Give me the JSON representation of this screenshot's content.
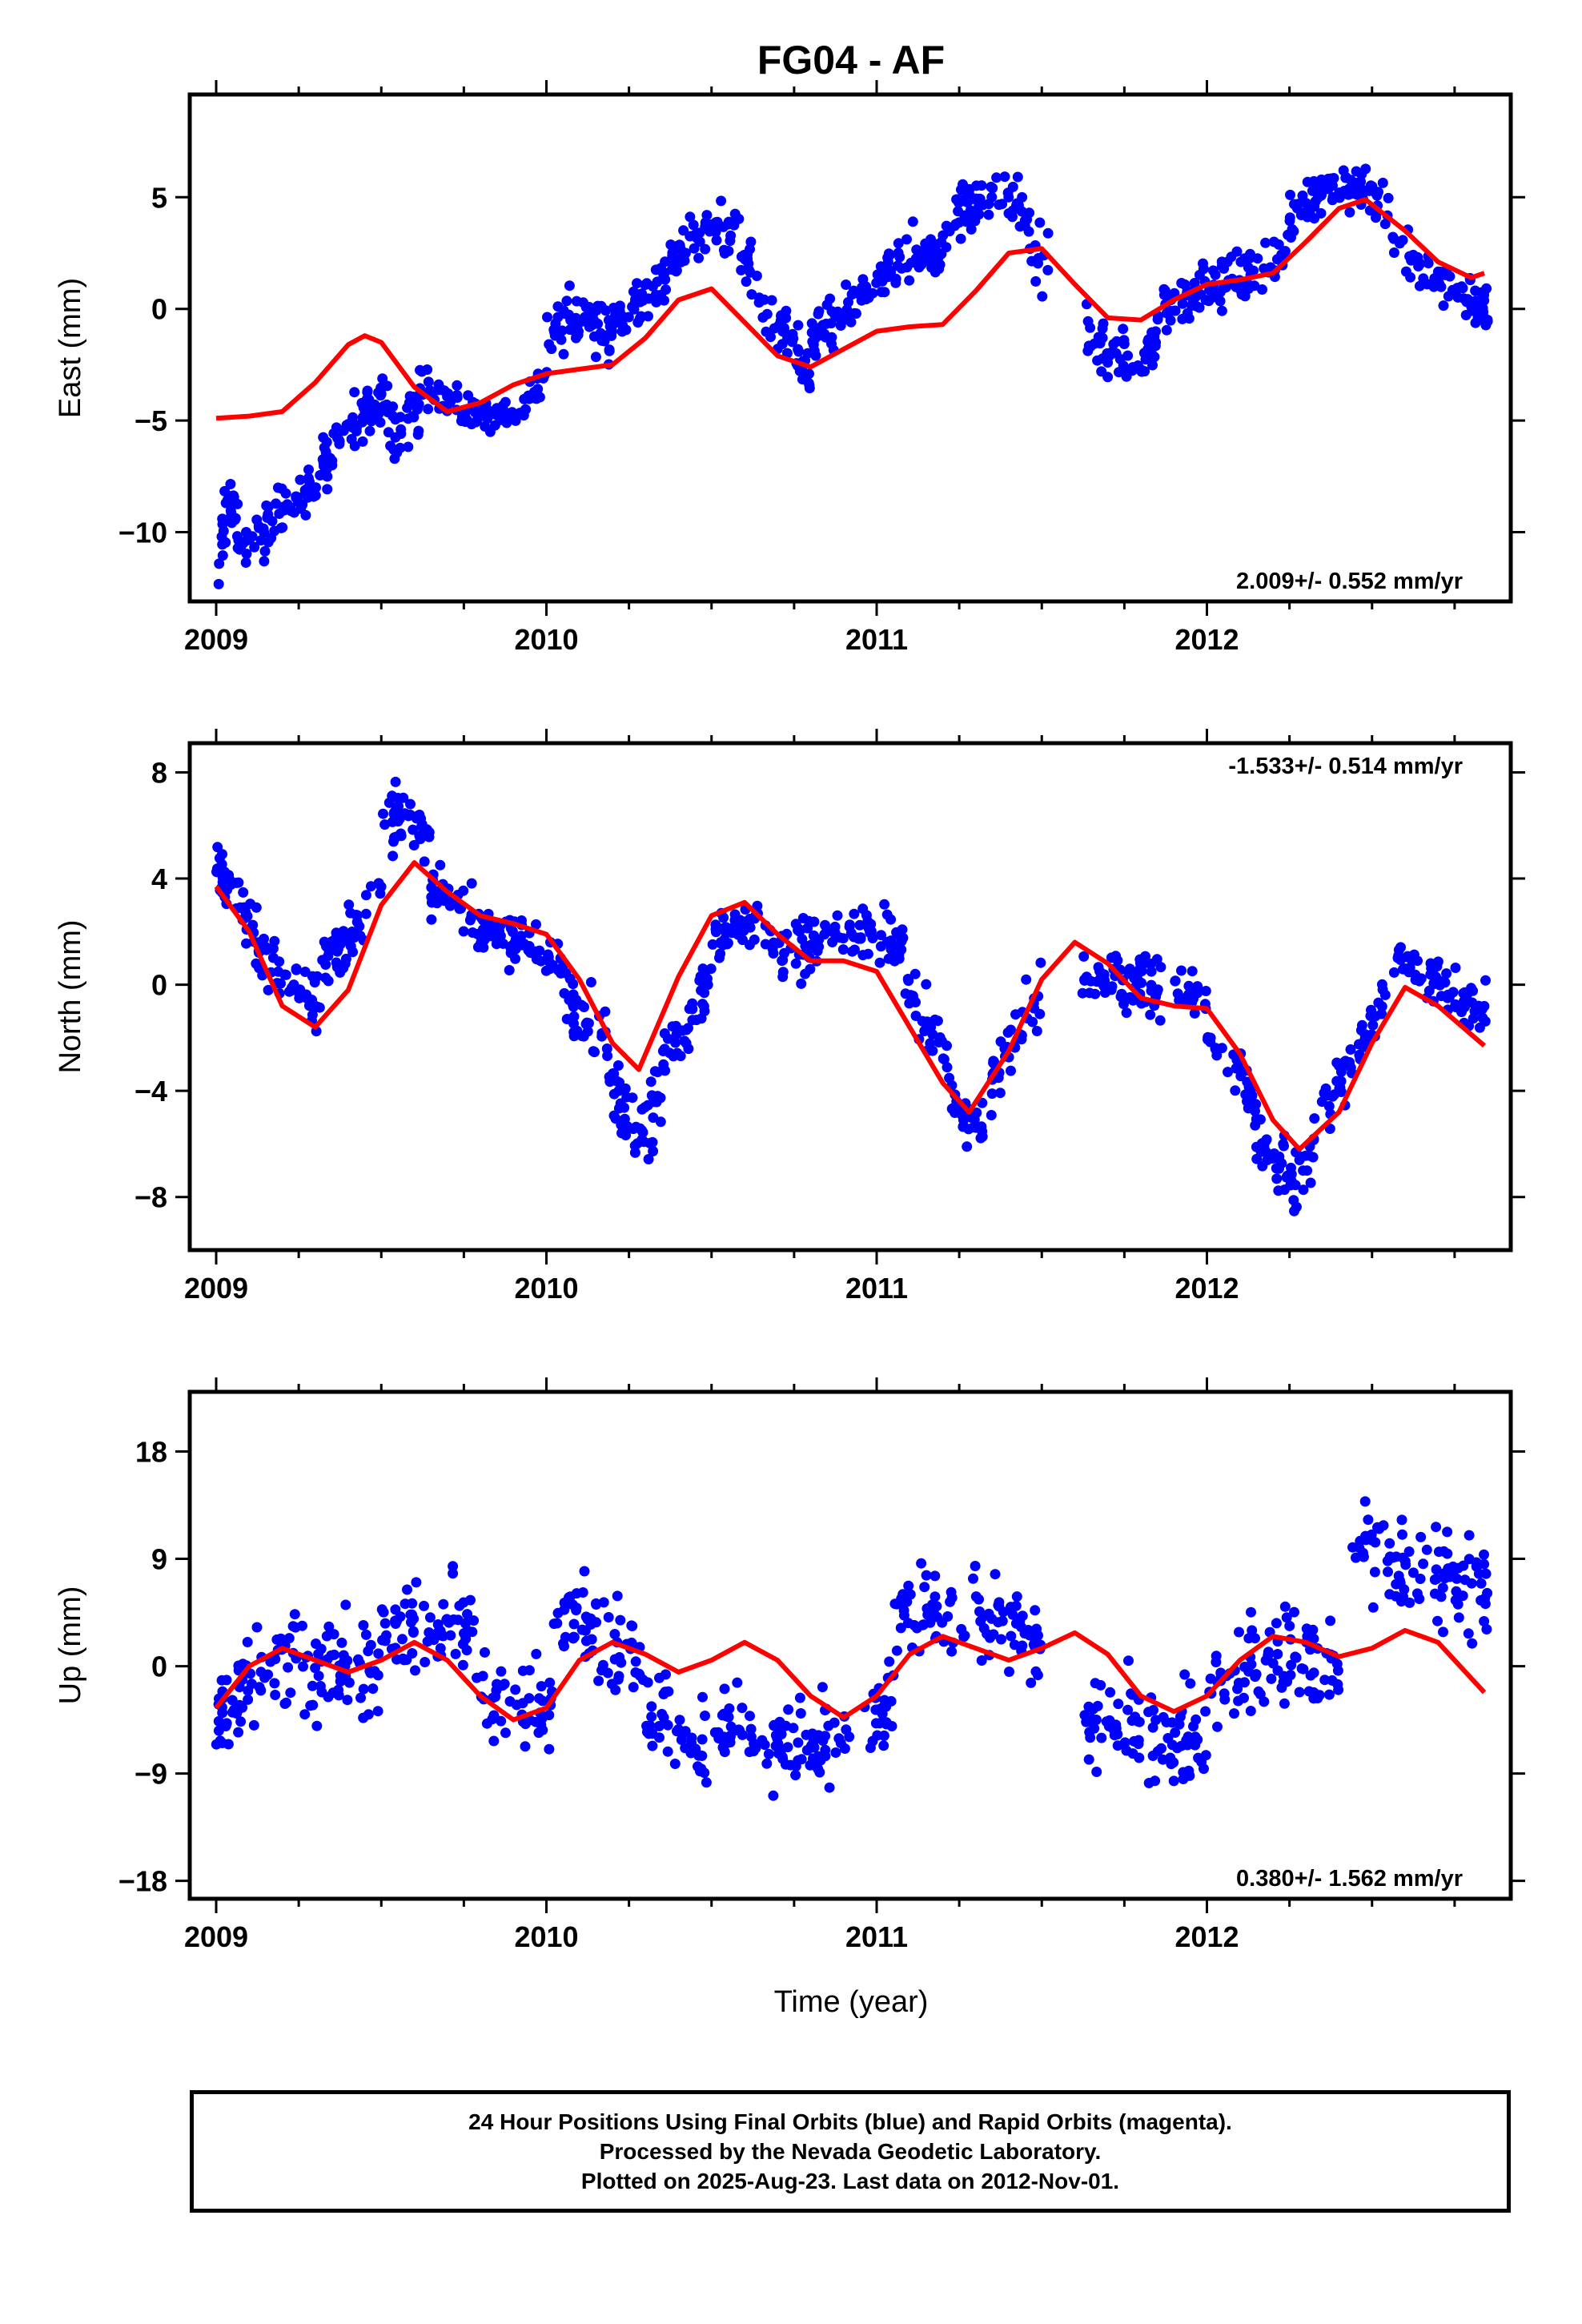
{
  "title": "FG04 - AF",
  "xlabel": "Time (year)",
  "footer": {
    "line1": "24 Hour Positions Using Final Orbits (blue) and Rapid Orbits (magenta).",
    "line2": "Processed by the Nevada Geodetic Laboratory.",
    "line3": "Plotted on 2025-Aug-23. Last data on 2012-Nov-01."
  },
  "colors": {
    "final_orbits": "#0000ff",
    "rapid_orbits": "#ff00ff",
    "model": "#ff0000",
    "frame": "#000000"
  },
  "chart_data": [
    {
      "type": "scatter",
      "component": "east",
      "ylabel": "East (mm)",
      "rate_label": "2.009+/- 0.552 mm/yr",
      "xlim": [
        2008.92,
        2012.92
      ],
      "ylim": [
        -13.1,
        9.6
      ],
      "xticks": [
        2009,
        2010,
        2011,
        2012
      ],
      "yticks": [
        -10,
        -5,
        0,
        5
      ],
      "fit_curve": {
        "x": [
          2009.0,
          2009.1,
          2009.2,
          2009.3,
          2009.4,
          2009.45,
          2009.5,
          2009.6,
          2009.7,
          2009.8,
          2009.9,
          2010.0,
          2010.1,
          2010.2,
          2010.3,
          2010.4,
          2010.5,
          2010.6,
          2010.7,
          2010.8,
          2010.9,
          2011.0,
          2011.1,
          2011.2,
          2011.3,
          2011.4,
          2011.5,
          2011.6,
          2011.7,
          2011.8,
          2011.9,
          2012.0,
          2012.1,
          2012.2,
          2012.3,
          2012.4,
          2012.48,
          2012.6,
          2012.7,
          2012.8,
          2012.84
        ],
        "y": [
          -4.9,
          -4.8,
          -4.6,
          -3.3,
          -1.6,
          -1.2,
          -1.5,
          -3.5,
          -4.6,
          -4.2,
          -3.4,
          -2.9,
          -2.7,
          -2.5,
          -1.3,
          0.4,
          0.9,
          -0.6,
          -2.1,
          -2.6,
          -1.8,
          -1.0,
          -0.8,
          -0.7,
          0.8,
          2.5,
          2.7,
          1.1,
          -0.4,
          -0.5,
          0.4,
          1.1,
          1.3,
          1.6,
          3.0,
          4.5,
          4.9,
          3.5,
          2.1,
          1.4,
          1.6
        ]
      },
      "clusters": [
        {
          "x0": 2009.0,
          "x1": 2009.08,
          "y0": -12.5,
          "y1": -11.0,
          "ymid": -9.0,
          "spread": 1.3,
          "n": 35
        },
        {
          "x0": 2009.08,
          "x1": 2009.33,
          "y0": -11.0,
          "y1": -7.0,
          "ymid": -9.0,
          "spread": 1.2,
          "n": 65
        },
        {
          "x0": 2009.33,
          "x1": 2009.52,
          "y0": -7.0,
          "y1": -4.0,
          "ymid": -5.0,
          "spread": 1.2,
          "n": 60
        },
        {
          "x0": 2009.52,
          "x1": 2009.62,
          "y0": -6.0,
          "y1": -4.0,
          "ymid": -5.0,
          "spread": 1.3,
          "n": 30
        },
        {
          "x0": 2009.62,
          "x1": 2010.0,
          "y0": -3.0,
          "y1": -3.0,
          "ymid": -4.8,
          "spread": 1.0,
          "n": 85
        },
        {
          "x0": 2010.0,
          "x1": 2010.2,
          "y0": -1.5,
          "y1": -1.0,
          "ymid": -0.5,
          "spread": 1.3,
          "n": 65
        },
        {
          "x0": 2010.2,
          "x1": 2010.45,
          "y0": -0.5,
          "y1": 3.5,
          "ymid": 1.0,
          "spread": 1.1,
          "n": 70
        },
        {
          "x0": 2010.45,
          "x1": 2010.62,
          "y0": 3.0,
          "y1": 2.0,
          "ymid": 3.5,
          "spread": 1.2,
          "n": 45
        },
        {
          "x0": 2010.62,
          "x1": 2010.8,
          "y0": 0.5,
          "y1": -3.0,
          "ymid": -1.0,
          "spread": 1.2,
          "n": 45
        },
        {
          "x0": 2010.8,
          "x1": 2011.05,
          "y0": -1.5,
          "y1": 2.0,
          "ymid": 0.0,
          "spread": 1.1,
          "n": 70
        },
        {
          "x0": 2011.05,
          "x1": 2011.2,
          "y0": 2.0,
          "y1": 2.5,
          "ymid": 2.5,
          "spread": 1.2,
          "n": 45
        },
        {
          "x0": 2011.2,
          "x1": 2011.45,
          "y0": 3.0,
          "y1": 4.5,
          "ymid": 5.0,
          "spread": 1.2,
          "n": 65
        },
        {
          "x0": 2011.45,
          "x1": 2011.52,
          "y0": 3.0,
          "y1": 2.0,
          "ymid": 2.5,
          "spread": 1.5,
          "n": 15
        },
        {
          "x0": 2011.63,
          "x1": 2011.85,
          "y0": -1.0,
          "y1": -1.5,
          "ymid": -2.2,
          "spread": 1.1,
          "n": 60
        },
        {
          "x0": 2011.85,
          "x1": 2012.25,
          "y0": 0.0,
          "y1": 2.5,
          "ymid": 1.2,
          "spread": 1.1,
          "n": 95
        },
        {
          "x0": 2012.25,
          "x1": 2012.55,
          "y0": 4.0,
          "y1": 4.5,
          "ymid": 5.5,
          "spread": 1.2,
          "n": 80
        },
        {
          "x0": 2012.55,
          "x1": 2012.85,
          "y0": 3.0,
          "y1": 0.0,
          "ymid": 1.5,
          "spread": 1.2,
          "n": 70
        }
      ]
    },
    {
      "type": "scatter",
      "component": "north",
      "ylabel": "North (mm)",
      "rate_label": "-1.533+/- 0.514 mm/yr",
      "xlim": [
        2008.92,
        2012.92
      ],
      "ylim": [
        -10.0,
        9.1
      ],
      "xticks": [
        2009,
        2010,
        2011,
        2012
      ],
      "yticks": [
        -8,
        -4,
        0,
        4,
        8
      ],
      "fit_curve": {
        "x": [
          2009.0,
          2009.1,
          2009.2,
          2009.3,
          2009.4,
          2009.5,
          2009.6,
          2009.7,
          2009.8,
          2009.9,
          2010.0,
          2010.1,
          2010.2,
          2010.28,
          2010.4,
          2010.5,
          2010.6,
          2010.7,
          2010.8,
          2010.9,
          2011.0,
          2011.1,
          2011.2,
          2011.28,
          2011.4,
          2011.5,
          2011.6,
          2011.7,
          2011.8,
          2011.9,
          2012.0,
          2012.1,
          2012.2,
          2012.28,
          2012.4,
          2012.5,
          2012.6,
          2012.7,
          2012.84
        ],
        "y": [
          3.7,
          2.0,
          -0.8,
          -1.6,
          -0.2,
          3.0,
          4.6,
          3.5,
          2.6,
          2.3,
          1.9,
          0.2,
          -2.2,
          -3.2,
          0.3,
          2.6,
          3.1,
          1.9,
          0.9,
          0.9,
          0.5,
          -1.6,
          -3.7,
          -4.8,
          -2.5,
          0.2,
          1.6,
          0.8,
          -0.5,
          -0.8,
          -0.9,
          -2.6,
          -5.1,
          -6.2,
          -4.8,
          -2.2,
          -0.1,
          -0.8,
          -2.3
        ]
      },
      "clusters": [
        {
          "x0": 2009.0,
          "x1": 2009.12,
          "y0": 4.5,
          "y1": 2.0,
          "ymid": 3.2,
          "spread": 1.0,
          "n": 40
        },
        {
          "x0": 2009.12,
          "x1": 2009.32,
          "y0": 1.5,
          "y1": -0.5,
          "ymid": 0.0,
          "spread": 1.3,
          "n": 50
        },
        {
          "x0": 2009.32,
          "x1": 2009.5,
          "y0": 1.0,
          "y1": 3.5,
          "ymid": 2.0,
          "spread": 1.1,
          "n": 50
        },
        {
          "x0": 2009.5,
          "x1": 2009.65,
          "y0": 5.5,
          "y1": 5.0,
          "ymid": 6.3,
          "spread": 1.0,
          "n": 45
        },
        {
          "x0": 2009.65,
          "x1": 2009.82,
          "y0": 3.5,
          "y1": 2.0,
          "ymid": 3.0,
          "spread": 0.9,
          "n": 45
        },
        {
          "x0": 2009.82,
          "x1": 2010.05,
          "y0": 2.0,
          "y1": 0.5,
          "ymid": 1.5,
          "spread": 1.0,
          "n": 60
        },
        {
          "x0": 2010.05,
          "x1": 2010.18,
          "y0": 0.0,
          "y1": -2.0,
          "ymid": -1.0,
          "spread": 1.2,
          "n": 35
        },
        {
          "x0": 2010.18,
          "x1": 2010.35,
          "y0": -3.0,
          "y1": -4.0,
          "ymid": -5.0,
          "spread": 1.5,
          "n": 55
        },
        {
          "x0": 2010.35,
          "x1": 2010.5,
          "y0": -3.0,
          "y1": 0.5,
          "ymid": -1.5,
          "spread": 1.1,
          "n": 40
        },
        {
          "x0": 2010.5,
          "x1": 2010.7,
          "y0": 1.5,
          "y1": 1.5,
          "ymid": 2.2,
          "spread": 0.9,
          "n": 55
        },
        {
          "x0": 2010.7,
          "x1": 2011.08,
          "y0": 1.0,
          "y1": 1.5,
          "ymid": 1.8,
          "spread": 1.1,
          "n": 95
        },
        {
          "x0": 2011.08,
          "x1": 2011.22,
          "y0": 0.0,
          "y1": -3.0,
          "ymid": -1.5,
          "spread": 1.1,
          "n": 35
        },
        {
          "x0": 2011.22,
          "x1": 2011.35,
          "y0": -4.0,
          "y1": -4.5,
          "ymid": -5.3,
          "spread": 0.9,
          "n": 35
        },
        {
          "x0": 2011.35,
          "x1": 2011.5,
          "y0": -3.5,
          "y1": 0.0,
          "ymid": -2.0,
          "spread": 1.1,
          "n": 35
        },
        {
          "x0": 2011.62,
          "x1": 2012.0,
          "y0": 0.5,
          "y1": -0.5,
          "ymid": 0.0,
          "spread": 1.1,
          "n": 90
        },
        {
          "x0": 2012.0,
          "x1": 2012.15,
          "y0": -2.0,
          "y1": -4.5,
          "ymid": -3.0,
          "spread": 1.1,
          "n": 35
        },
        {
          "x0": 2012.15,
          "x1": 2012.32,
          "y0": -5.5,
          "y1": -6.5,
          "ymid": -7.0,
          "spread": 1.2,
          "n": 45
        },
        {
          "x0": 2012.32,
          "x1": 2012.55,
          "y0": -5.5,
          "y1": -0.5,
          "ymid": -3.0,
          "spread": 1.1,
          "n": 55
        },
        {
          "x0": 2012.55,
          "x1": 2012.85,
          "y0": 1.0,
          "y1": -1.0,
          "ymid": 0.0,
          "spread": 1.0,
          "n": 70
        }
      ]
    },
    {
      "type": "scatter",
      "component": "up",
      "ylabel": "Up (mm)",
      "rate_label": "0.380+/- 1.562 mm/yr",
      "xlim": [
        2008.92,
        2012.92
      ],
      "ylim": [
        -19.5,
        23.0
      ],
      "xticks": [
        2009,
        2010,
        2011,
        2012
      ],
      "yticks": [
        -18,
        -9,
        0,
        9,
        18
      ],
      "fit_curve": {
        "x": [
          2009.0,
          2009.1,
          2009.2,
          2009.3,
          2009.4,
          2009.5,
          2009.6,
          2009.7,
          2009.8,
          2009.9,
          2010.0,
          2010.1,
          2010.2,
          2010.3,
          2010.4,
          2010.5,
          2010.6,
          2010.7,
          2010.8,
          2010.9,
          2011.0,
          2011.1,
          2011.2,
          2011.3,
          2011.4,
          2011.5,
          2011.6,
          2011.7,
          2011.8,
          2011.9,
          2012.0,
          2012.1,
          2012.2,
          2012.3,
          2012.4,
          2012.5,
          2012.6,
          2012.7,
          2012.84
        ],
        "y": [
          -3.5,
          0.0,
          1.5,
          0.5,
          -0.5,
          0.5,
          2.0,
          0.5,
          -2.5,
          -4.5,
          -3.5,
          0.5,
          2.0,
          1.0,
          -0.5,
          0.5,
          2.0,
          0.5,
          -2.5,
          -4.3,
          -2.5,
          1.0,
          2.5,
          1.5,
          0.5,
          1.5,
          2.8,
          1.0,
          -2.5,
          -3.8,
          -2.5,
          0.5,
          2.5,
          2.0,
          0.8,
          1.5,
          3.0,
          2.0,
          -2.2
        ]
      },
      "clusters": [
        {
          "x0": 2009.0,
          "x1": 2009.2,
          "y0": -5.0,
          "y1": 1.0,
          "ymid": -1.0,
          "spread": 4.0,
          "n": 55
        },
        {
          "x0": 2009.2,
          "x1": 2009.5,
          "y0": 0.0,
          "y1": -1.0,
          "ymid": 0.0,
          "spread": 4.0,
          "n": 70
        },
        {
          "x0": 2009.5,
          "x1": 2009.8,
          "y0": 3.0,
          "y1": 2.0,
          "ymid": 3.5,
          "spread": 3.8,
          "n": 70
        },
        {
          "x0": 2009.8,
          "x1": 2010.02,
          "y0": -2.0,
          "y1": -3.0,
          "ymid": -3.5,
          "spread": 4.5,
          "n": 50
        },
        {
          "x0": 2010.02,
          "x1": 2010.3,
          "y0": 5.0,
          "y1": 0.0,
          "ymid": 3.0,
          "spread": 4.0,
          "n": 65
        },
        {
          "x0": 2010.3,
          "x1": 2010.65,
          "y0": -4.0,
          "y1": -5.0,
          "ymid": -6.0,
          "spread": 4.0,
          "n": 80
        },
        {
          "x0": 2010.65,
          "x1": 2011.05,
          "y0": -6.0,
          "y1": -3.0,
          "ymid": -6.5,
          "spread": 4.0,
          "n": 90
        },
        {
          "x0": 2011.05,
          "x1": 2011.5,
          "y0": 3.0,
          "y1": 2.0,
          "ymid": 4.5,
          "spread": 3.8,
          "n": 100
        },
        {
          "x0": 2011.63,
          "x1": 2012.0,
          "y0": -4.0,
          "y1": -6.0,
          "ymid": -6.0,
          "spread": 4.2,
          "n": 90
        },
        {
          "x0": 2012.0,
          "x1": 2012.4,
          "y0": -2.0,
          "y1": 0.0,
          "ymid": 0.5,
          "spread": 4.2,
          "n": 90
        },
        {
          "x0": 2012.43,
          "x1": 2012.85,
          "y0": 10.0,
          "y1": 6.0,
          "ymid": 8.5,
          "spread": 4.2,
          "n": 95
        }
      ]
    }
  ]
}
